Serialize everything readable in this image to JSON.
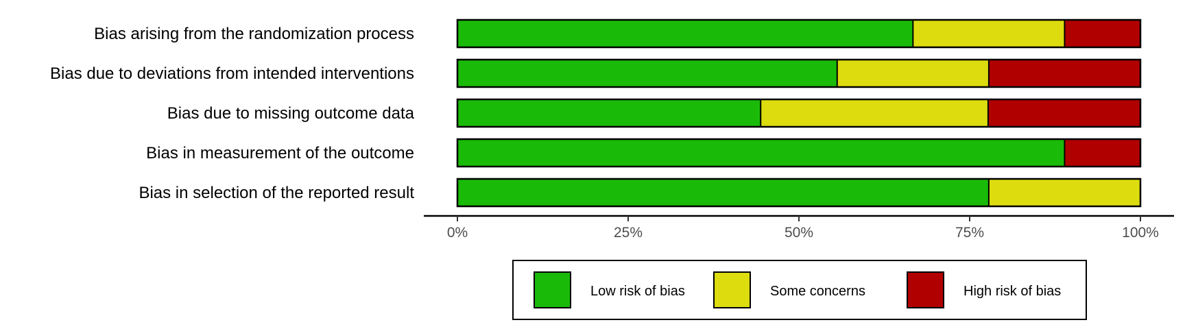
{
  "chart_data": {
    "type": "bar",
    "orientation": "horizontal",
    "stacked": true,
    "categories": [
      "Bias arising from the randomization process",
      "Bias due to deviations from intended interventions",
      "Bias due to missing outcome data",
      "Bias in measurement of the outcome",
      "Bias in selection of the reported result"
    ],
    "series": [
      {
        "name": "Low risk of bias",
        "color": "#1aba08",
        "values": [
          66.7,
          55.6,
          44.4,
          88.9,
          77.8
        ]
      },
      {
        "name": "Some concerns",
        "color": "#dcdc0f",
        "values": [
          22.2,
          22.2,
          33.3,
          0,
          22.2
        ]
      },
      {
        "name": "High risk of bias",
        "color": "#b00000",
        "values": [
          11.1,
          22.2,
          22.2,
          11.1,
          0
        ]
      }
    ],
    "xlim": [
      0,
      100
    ],
    "xticks": [
      0,
      25,
      50,
      75,
      100
    ],
    "xtick_labels": [
      "0%",
      "25%",
      "50%",
      "75%",
      "100%"
    ],
    "title": "",
    "xlabel": "",
    "ylabel": "",
    "grid": false,
    "legend_position": "bottom"
  }
}
